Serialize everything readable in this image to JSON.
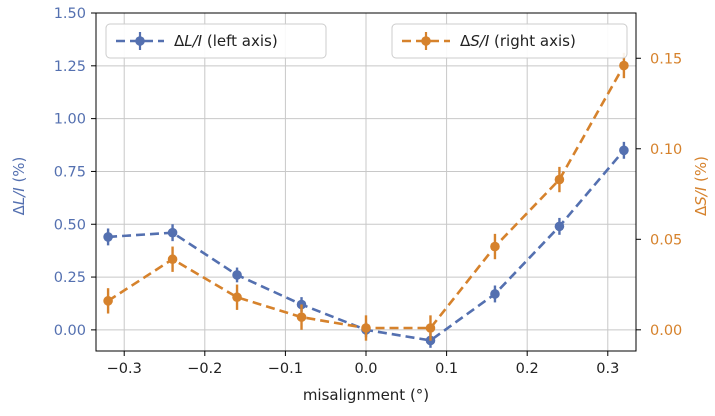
{
  "chart_data": {
    "type": "line",
    "xlabel": "misalignment (°)",
    "x": [
      -0.32,
      -0.24,
      -0.16,
      -0.08,
      0.0,
      0.08,
      0.16,
      0.24,
      0.32
    ],
    "xlim": [
      -0.335,
      0.335
    ],
    "xticks": [
      -0.3,
      -0.2,
      -0.1,
      0.0,
      0.1,
      0.2,
      0.3
    ],
    "xtick_labels": [
      "−0.3",
      "−0.2",
      "−0.1",
      "0.0",
      "0.1",
      "0.2",
      "0.3"
    ],
    "grid": true,
    "left_axis": {
      "label_prefix": "Δ",
      "label_italic": "L/I",
      "label_suffix": " (%)",
      "color": "#5470b0",
      "ylim": [
        -0.1,
        1.5
      ],
      "ticks": [
        0.0,
        0.25,
        0.5,
        0.75,
        1.0,
        1.25,
        1.5
      ],
      "tick_labels": [
        "0.00",
        "0.25",
        "0.50",
        "0.75",
        "1.00",
        "1.25",
        "1.50"
      ]
    },
    "right_axis": {
      "label_prefix": "Δ",
      "label_italic": "S/I",
      "label_suffix": " (%)",
      "color": "#d6822c",
      "ylim": [
        -0.0117,
        0.175
      ],
      "ticks": [
        0.0,
        0.05,
        0.1,
        0.15
      ],
      "tick_labels": [
        "0.00",
        "0.05",
        "0.10",
        "0.15"
      ]
    },
    "series": [
      {
        "axis": "left",
        "color": "#5470b0",
        "legend_prefix": "Δ",
        "legend_italic": "L/I",
        "legend_suffix": " (left axis)",
        "values": [
          0.44,
          0.46,
          0.26,
          0.12,
          0.0,
          -0.05,
          0.17,
          0.49,
          0.85
        ],
        "errors": [
          0.04,
          0.04,
          0.035,
          0.035,
          0.035,
          0.035,
          0.04,
          0.04,
          0.04
        ]
      },
      {
        "axis": "right",
        "color": "#d6822c",
        "legend_prefix": "Δ",
        "legend_italic": "S/I",
        "legend_suffix": " (right axis)",
        "values": [
          0.016,
          0.039,
          0.018,
          0.007,
          0.001,
          0.001,
          0.046,
          0.083,
          0.146
        ],
        "errors": [
          0.007,
          0.007,
          0.007,
          0.007,
          0.007,
          0.007,
          0.007,
          0.007,
          0.007
        ]
      }
    ],
    "legend": [
      "top-left",
      "top-right"
    ]
  }
}
